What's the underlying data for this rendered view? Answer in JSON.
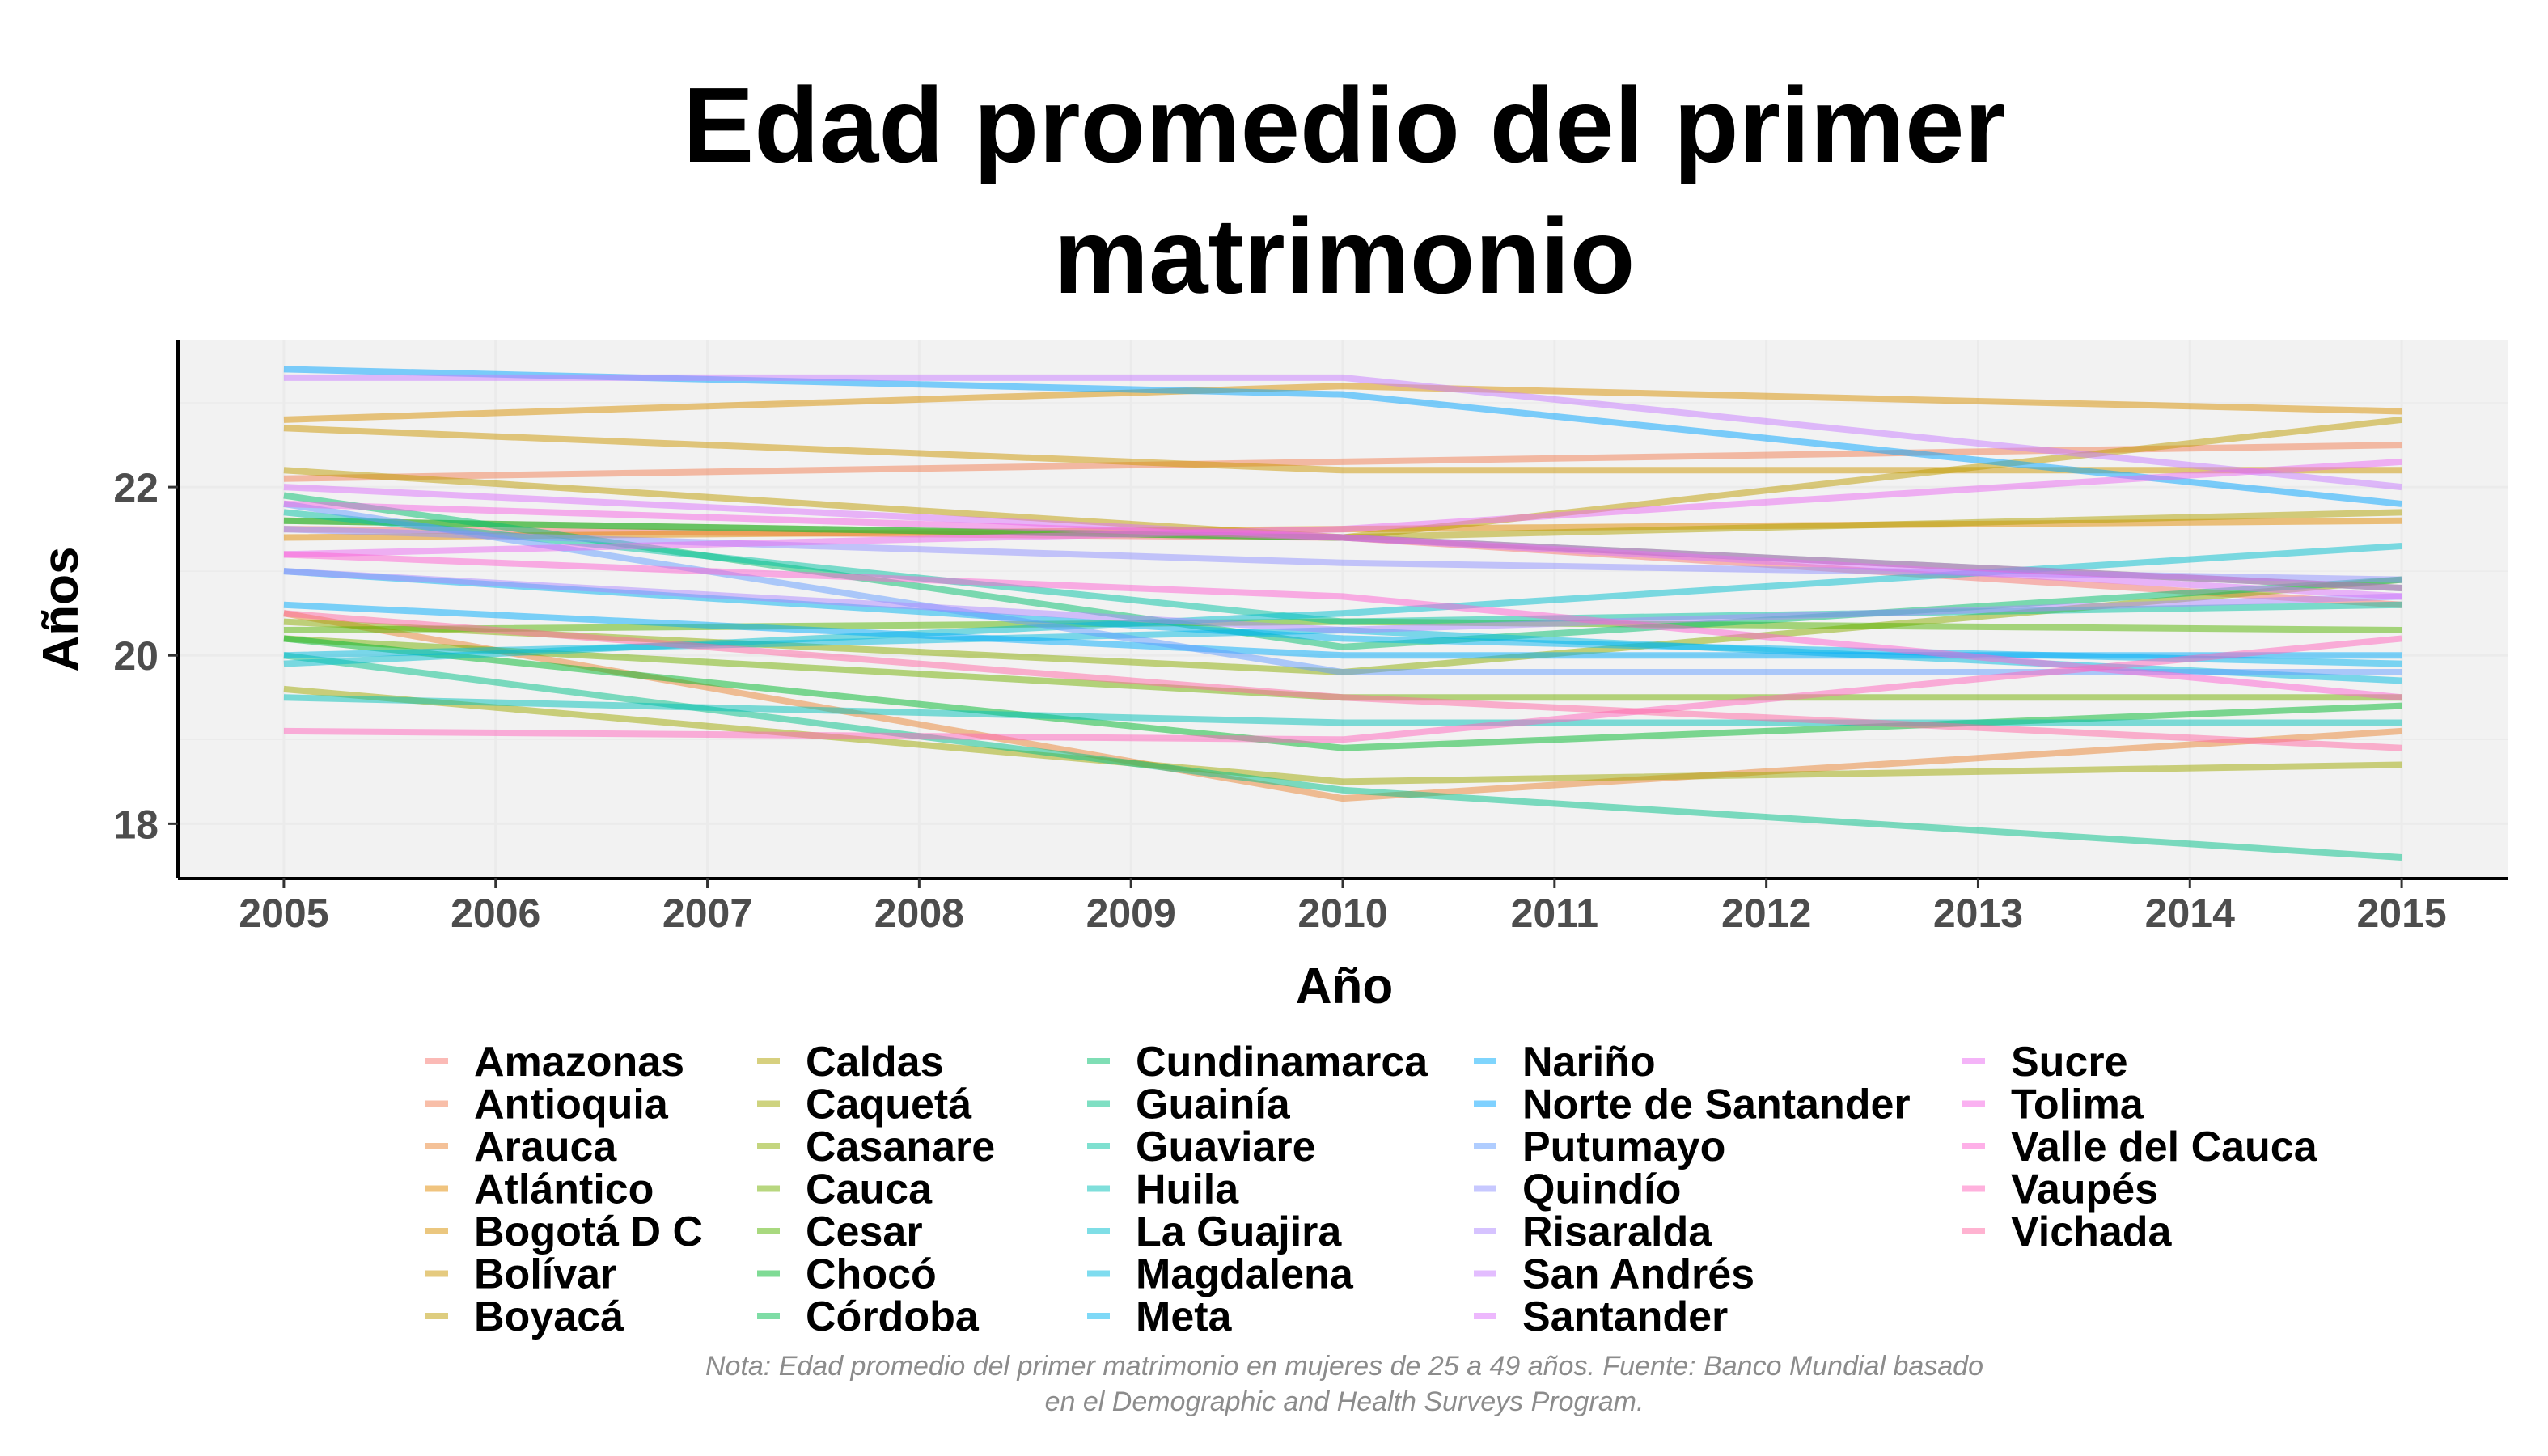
{
  "chart_data": {
    "type": "line",
    "title": "Edad promedio del primer matrimonio",
    "xlabel": "Año",
    "ylabel": "Años",
    "x": [
      2005,
      2010,
      2015
    ],
    "xticks": [
      "2005",
      "2006",
      "2007",
      "2008",
      "2009",
      "2010",
      "2011",
      "2012",
      "2013",
      "2014",
      "2015"
    ],
    "yticks": [
      "18",
      "20",
      "22"
    ],
    "xlim": [
      2004.5,
      2015.5
    ],
    "ylim": [
      17.35,
      23.75
    ],
    "grid": true,
    "legend_position": "bottom",
    "caption": "Nota: Edad promedio del primer matrimonio en mujeres de 25 a 49 años. Fuente: Banco Mundial basado en el Demographic and Health Surveys Program.",
    "series": [
      {
        "name": "Amazonas",
        "values": [
          21.5,
          21.4,
          20.6
        ],
        "color": "#F8766D"
      },
      {
        "name": "Antioquia",
        "values": [
          22.1,
          22.3,
          22.5
        ],
        "color": "#F27D52"
      },
      {
        "name": "Arauca",
        "values": [
          20.5,
          18.3,
          19.1
        ],
        "color": "#EA8331"
      },
      {
        "name": "Atlántico",
        "values": [
          21.4,
          21.5,
          21.6
        ],
        "color": "#E28A00"
      },
      {
        "name": "Bogotá D C",
        "values": [
          22.8,
          23.2,
          22.9
        ],
        "color": "#D89000"
      },
      {
        "name": "Bolívar",
        "values": [
          22.7,
          22.2,
          22.2
        ],
        "color": "#CB9600"
      },
      {
        "name": "Boyacá",
        "values": [
          22.2,
          21.4,
          22.8
        ],
        "color": "#BE9C00"
      },
      {
        "name": "Caldas",
        "values": [
          21.6,
          21.4,
          21.7
        ],
        "color": "#AFA100"
      },
      {
        "name": "Caquetá",
        "values": [
          19.6,
          18.5,
          18.7
        ],
        "color": "#9DA700"
      },
      {
        "name": "Casanare",
        "values": [
          20.4,
          19.8,
          20.9
        ],
        "color": "#89AC00"
      },
      {
        "name": "Cauca",
        "values": [
          20.2,
          19.5,
          19.5
        ],
        "color": "#72B000"
      },
      {
        "name": "Cesar",
        "values": [
          20.3,
          20.4,
          20.3
        ],
        "color": "#53B400"
      },
      {
        "name": "Chocó",
        "values": [
          20.2,
          18.9,
          19.4
        ],
        "color": "#00B82B"
      },
      {
        "name": "Córdoba",
        "values": [
          21.6,
          21.4,
          20.8
        ],
        "color": "#00BB4E"
      },
      {
        "name": "Cundinamarca",
        "values": [
          21.9,
          20.1,
          20.9
        ],
        "color": "#00BE6C"
      },
      {
        "name": "Guainía",
        "values": [
          20.0,
          18.4,
          17.6
        ],
        "color": "#00C088"
      },
      {
        "name": "Guaviare",
        "values": [
          21.7,
          20.4,
          20.6
        ],
        "color": "#00C1A1"
      },
      {
        "name": "Huila",
        "values": [
          19.5,
          19.2,
          19.2
        ],
        "color": "#00C0B8"
      },
      {
        "name": "La Guajira",
        "values": [
          19.9,
          20.5,
          21.3
        ],
        "color": "#00BDCD"
      },
      {
        "name": "Magdalena",
        "values": [
          20.0,
          20.3,
          19.7
        ],
        "color": "#00B9E0"
      },
      {
        "name": "Meta",
        "values": [
          21.0,
          20.2,
          19.9
        ],
        "color": "#00B3F0"
      },
      {
        "name": "Nariño",
        "values": [
          20.6,
          20.0,
          20.0
        ],
        "color": "#00ACFC"
      },
      {
        "name": "Norte de Santander",
        "values": [
          23.4,
          23.1,
          21.8
        ],
        "color": "#00A4FF"
      },
      {
        "name": "Putumayo",
        "values": [
          21.8,
          19.8,
          19.8
        ],
        "color": "#619CFF"
      },
      {
        "name": "Quindío",
        "values": [
          21.5,
          21.1,
          20.9
        ],
        "color": "#8F91FF"
      },
      {
        "name": "Risaralda",
        "values": [
          21.0,
          20.3,
          20.7
        ],
        "color": "#AE87FF"
      },
      {
        "name": "San Andrés",
        "values": [
          23.3,
          23.3,
          22.0
        ],
        "color": "#C77CFF"
      },
      {
        "name": "Santander",
        "values": [
          22.0,
          21.4,
          20.7
        ],
        "color": "#DB72FB"
      },
      {
        "name": "Sucre",
        "values": [
          21.2,
          21.5,
          22.3
        ],
        "color": "#EA6AF1"
      },
      {
        "name": "Tolima",
        "values": [
          21.8,
          21.4,
          20.8
        ],
        "color": "#F564E3"
      },
      {
        "name": "Valle del Cauca",
        "values": [
          21.2,
          20.7,
          19.5
        ],
        "color": "#FD61D1"
      },
      {
        "name": "Vaupés",
        "values": [
          19.1,
          19.0,
          20.2
        ],
        "color": "#FF63BC"
      },
      {
        "name": "Vichada",
        "values": [
          20.5,
          19.5,
          18.9
        ],
        "color": "#FF67A4"
      }
    ]
  }
}
